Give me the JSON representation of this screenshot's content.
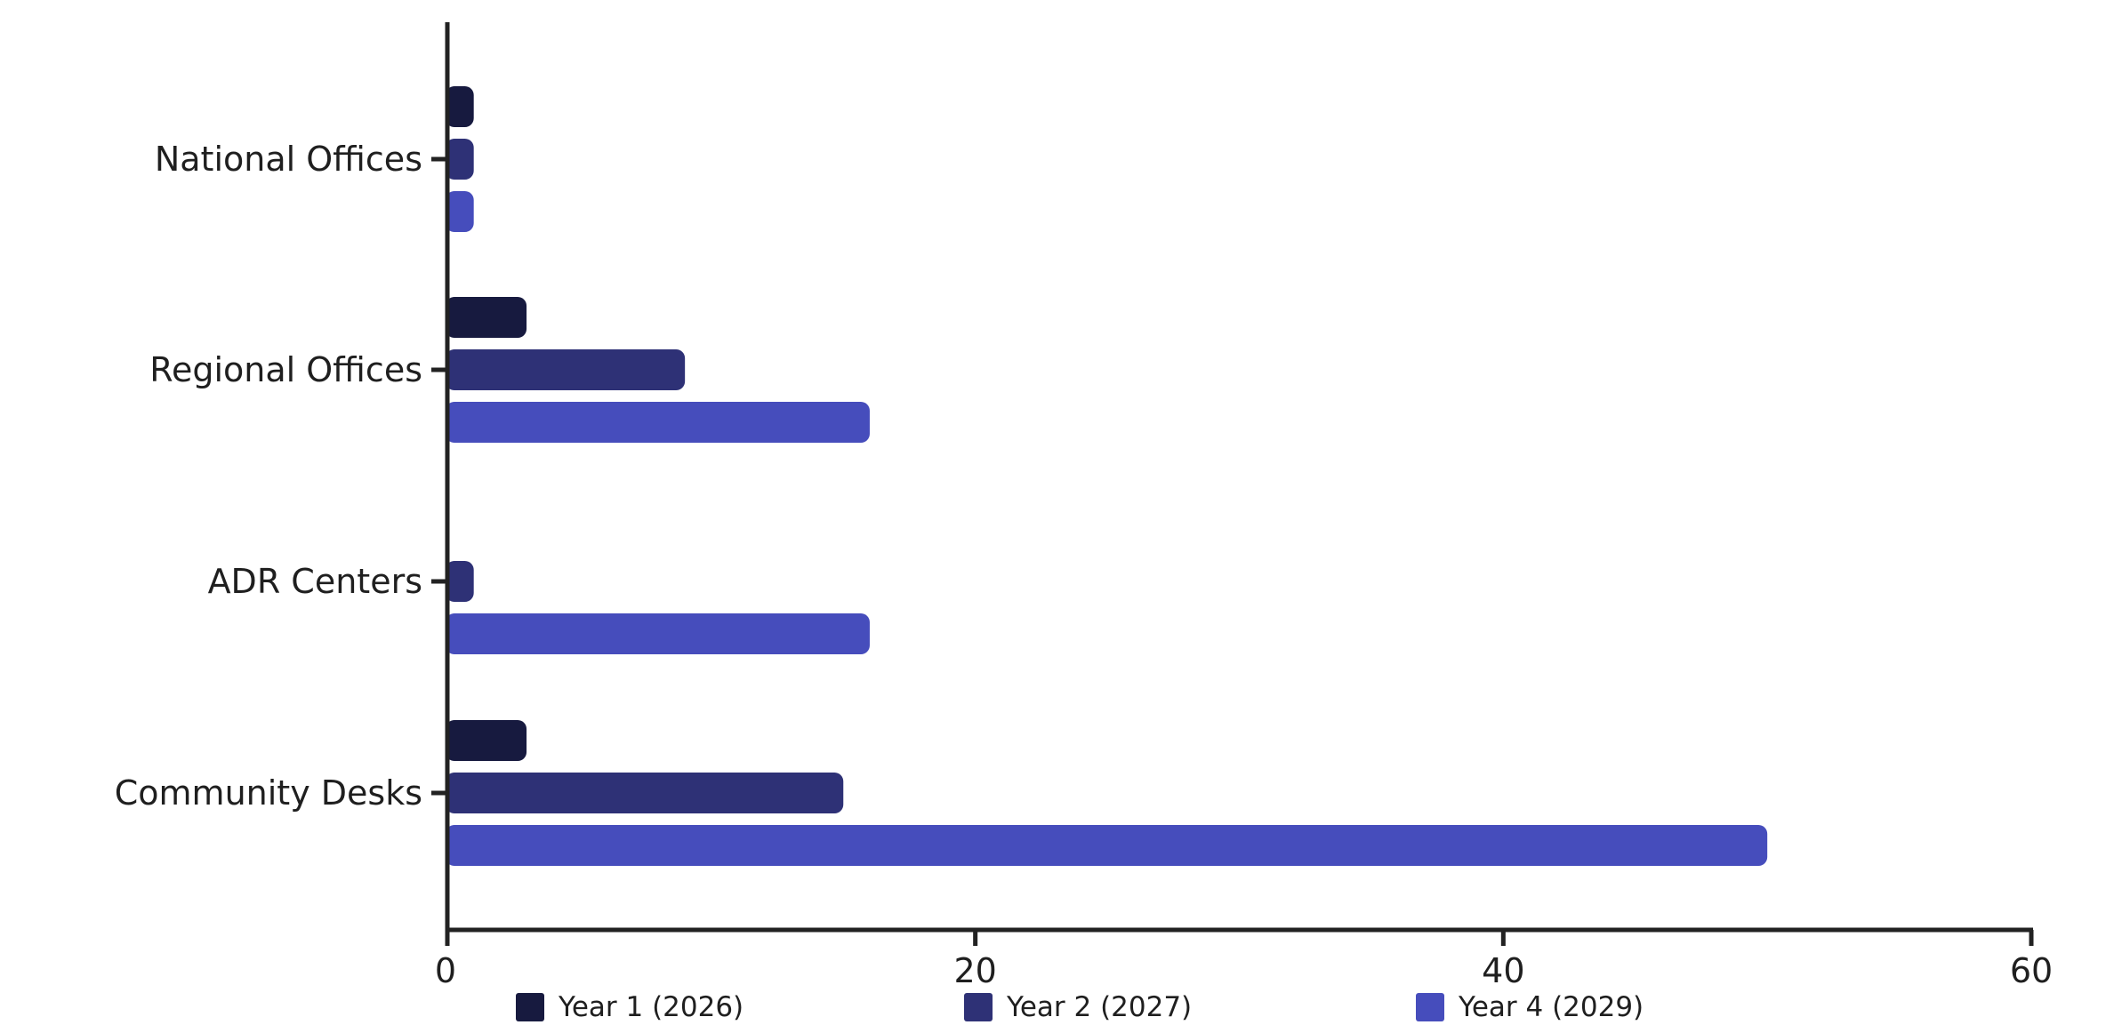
{
  "chart_data": {
    "type": "bar",
    "orientation": "horizontal",
    "title": "",
    "xlabel": "",
    "ylabel": "",
    "categories": [
      "National Offices",
      "Regional Offices",
      "ADR Centers",
      "Community Desks"
    ],
    "series": [
      {
        "name": "Year 1 (2026)",
        "color": "#171a3f",
        "values": [
          1,
          3,
          0,
          3
        ]
      },
      {
        "name": "Year 2 (2027)",
        "color": "#2e3176",
        "values": [
          1,
          9,
          1,
          15
        ]
      },
      {
        "name": "Year 4 (2029)",
        "color": "#464dbc",
        "values": [
          1,
          16,
          16,
          50
        ]
      }
    ],
    "xlim": [
      0,
      60
    ],
    "xticks": [
      "0",
      "20",
      "40",
      "60"
    ],
    "grid": false,
    "legend_position": "bottom"
  }
}
